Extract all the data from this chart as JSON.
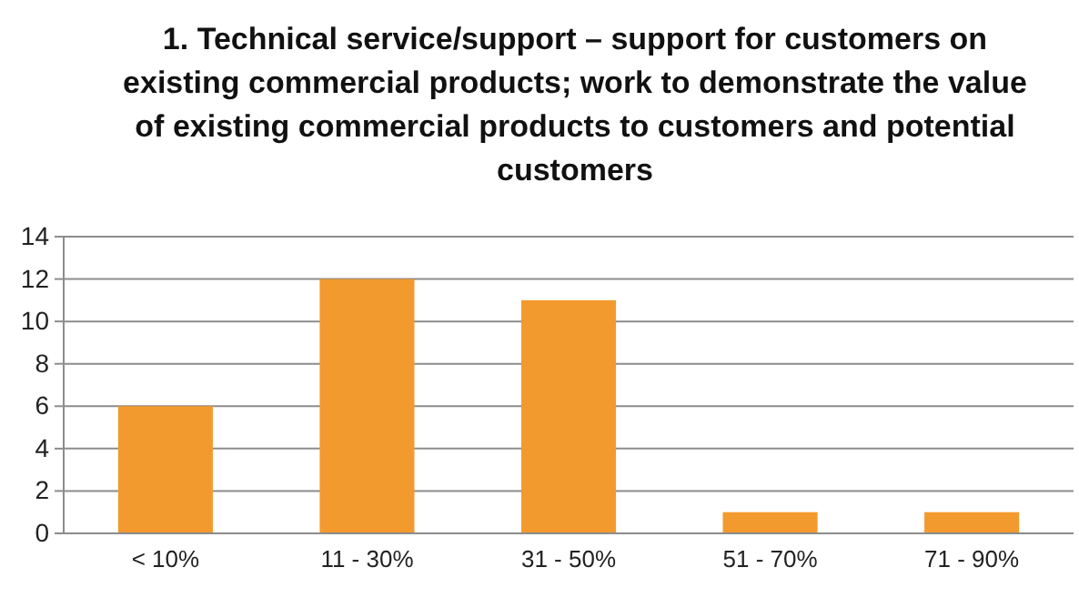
{
  "chart_data": {
    "type": "bar",
    "title": "1. Technical service/support – support for customers on existing commercial products; work to demonstrate the value of existing commercial products to customers and potential customers",
    "categories": [
      "< 10%",
      "11 - 30%",
      "31 - 50%",
      "51 - 70%",
      "71 - 90%"
    ],
    "values": [
      6,
      12,
      11,
      1,
      1
    ],
    "color": "#f39a2e",
    "ylim": [
      0,
      14
    ],
    "yticks": [
      0,
      2,
      4,
      6,
      8,
      10,
      12,
      14
    ],
    "grid": "y"
  }
}
